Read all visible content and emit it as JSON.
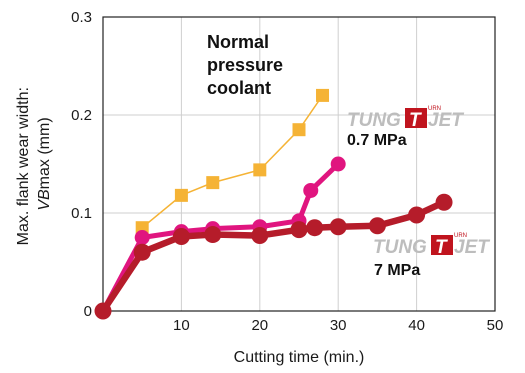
{
  "chart_data": {
    "type": "line",
    "title": "",
    "xlabel": "Cutting time (min.)",
    "ylabel_line1": "Max. flank wear width:",
    "ylabel_line2_italic": "VB",
    "ylabel_line2_rest": "max (mm)",
    "xlim": [
      0,
      50
    ],
    "ylim": [
      0,
      0.3
    ],
    "x_ticks": [
      "10",
      "20",
      "30",
      "40",
      "50"
    ],
    "y_ticks": [
      "0",
      "0.1",
      "0.2",
      "0.3"
    ],
    "grid": true,
    "series": [
      {
        "name": "Normal pressure coolant",
        "color": "#f5b335",
        "marker": "square",
        "points": [
          [
            5,
            0.085
          ],
          [
            10,
            0.118
          ],
          [
            14,
            0.131
          ],
          [
            20,
            0.144
          ],
          [
            25,
            0.185
          ],
          [
            28,
            0.22
          ]
        ]
      },
      {
        "name": "0.7 MPa",
        "color": "#e0157f",
        "marker": "circle",
        "points": [
          [
            0,
            0.0
          ],
          [
            5,
            0.075
          ],
          [
            10,
            0.081
          ],
          [
            14,
            0.084
          ],
          [
            20,
            0.086
          ],
          [
            25,
            0.092
          ],
          [
            26.5,
            0.123
          ],
          [
            30,
            0.15
          ]
        ]
      },
      {
        "name": "7 MPa",
        "color": "#b51c2a",
        "marker": "circle",
        "points": [
          [
            0,
            0.0
          ],
          [
            5,
            0.06
          ],
          [
            10,
            0.076
          ],
          [
            14,
            0.078
          ],
          [
            20,
            0.077
          ],
          [
            25,
            0.083
          ],
          [
            27,
            0.085
          ],
          [
            30,
            0.086
          ],
          [
            35,
            0.087
          ],
          [
            40,
            0.098
          ],
          [
            43.5,
            0.111
          ]
        ]
      }
    ],
    "annotations": {
      "normal_line1": "Normal",
      "normal_line2": "pressure",
      "normal_line3": "coolant",
      "label_07": "0.7 MPa",
      "label_7": "7 MPa"
    },
    "logo": {
      "tung": "TUNG",
      "t": "T",
      "jet": "JET",
      "urn": "URN"
    }
  }
}
